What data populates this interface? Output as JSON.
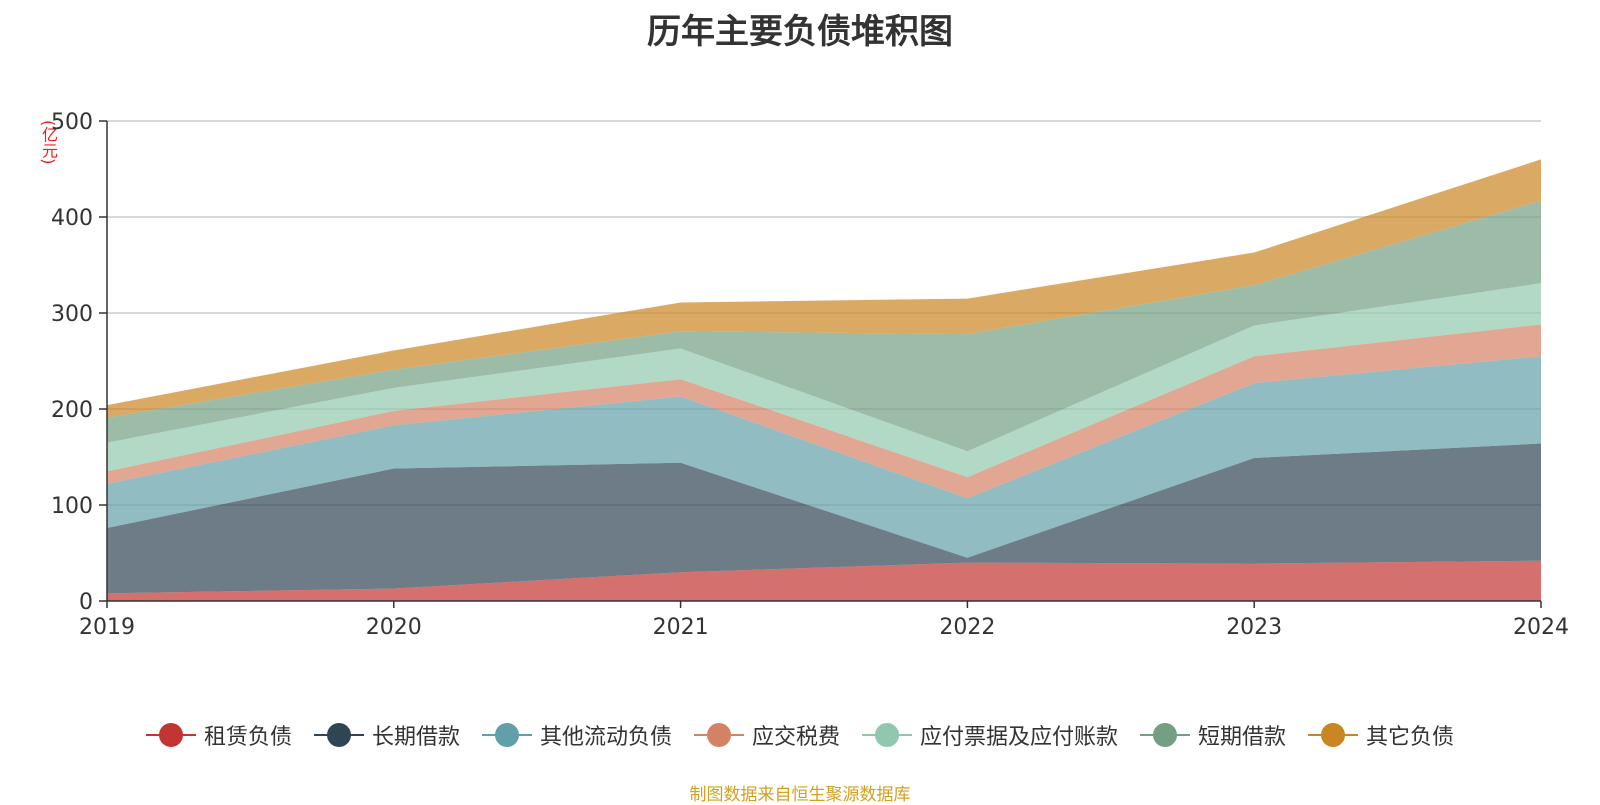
{
  "title": "历年主要负债堆积图",
  "source": "制图数据来自恒生聚源数据库",
  "chart_data": {
    "type": "area",
    "stacked": true,
    "title": "历年主要负债堆积图",
    "unit_label": "(亿元)",
    "xlabel": "",
    "ylabel": "",
    "categories": [
      "2019",
      "2020",
      "2021",
      "2022",
      "2023",
      "2024"
    ],
    "ylim": [
      0,
      500
    ],
    "yticks": [
      0,
      100,
      200,
      300,
      400,
      500
    ],
    "grid": true,
    "legend_position": "bottom",
    "series": [
      {
        "name": "租赁负债",
        "color": "#c23531",
        "values": [
          8,
          13,
          30,
          40,
          39,
          42
        ]
      },
      {
        "name": "长期借款",
        "color": "#2f4554",
        "values": [
          68,
          125,
          114,
          5,
          110,
          122
        ]
      },
      {
        "name": "其他流动负债",
        "color": "#61a0a8",
        "values": [
          46,
          45,
          69,
          62,
          78,
          91
        ]
      },
      {
        "name": "应交税费",
        "color": "#d48265",
        "values": [
          13,
          15,
          18,
          22,
          28,
          33
        ]
      },
      {
        "name": "应付票据及应付账款",
        "color": "#91c7ae",
        "values": [
          30,
          24,
          32,
          27,
          32,
          43
        ]
      },
      {
        "name": "短期借款",
        "color": "#749f83",
        "values": [
          26,
          19,
          18,
          122,
          42,
          86
        ]
      },
      {
        "name": "其它负债",
        "color": "#ca8622",
        "values": [
          13,
          20,
          30,
          37,
          34,
          43
        ]
      }
    ]
  }
}
